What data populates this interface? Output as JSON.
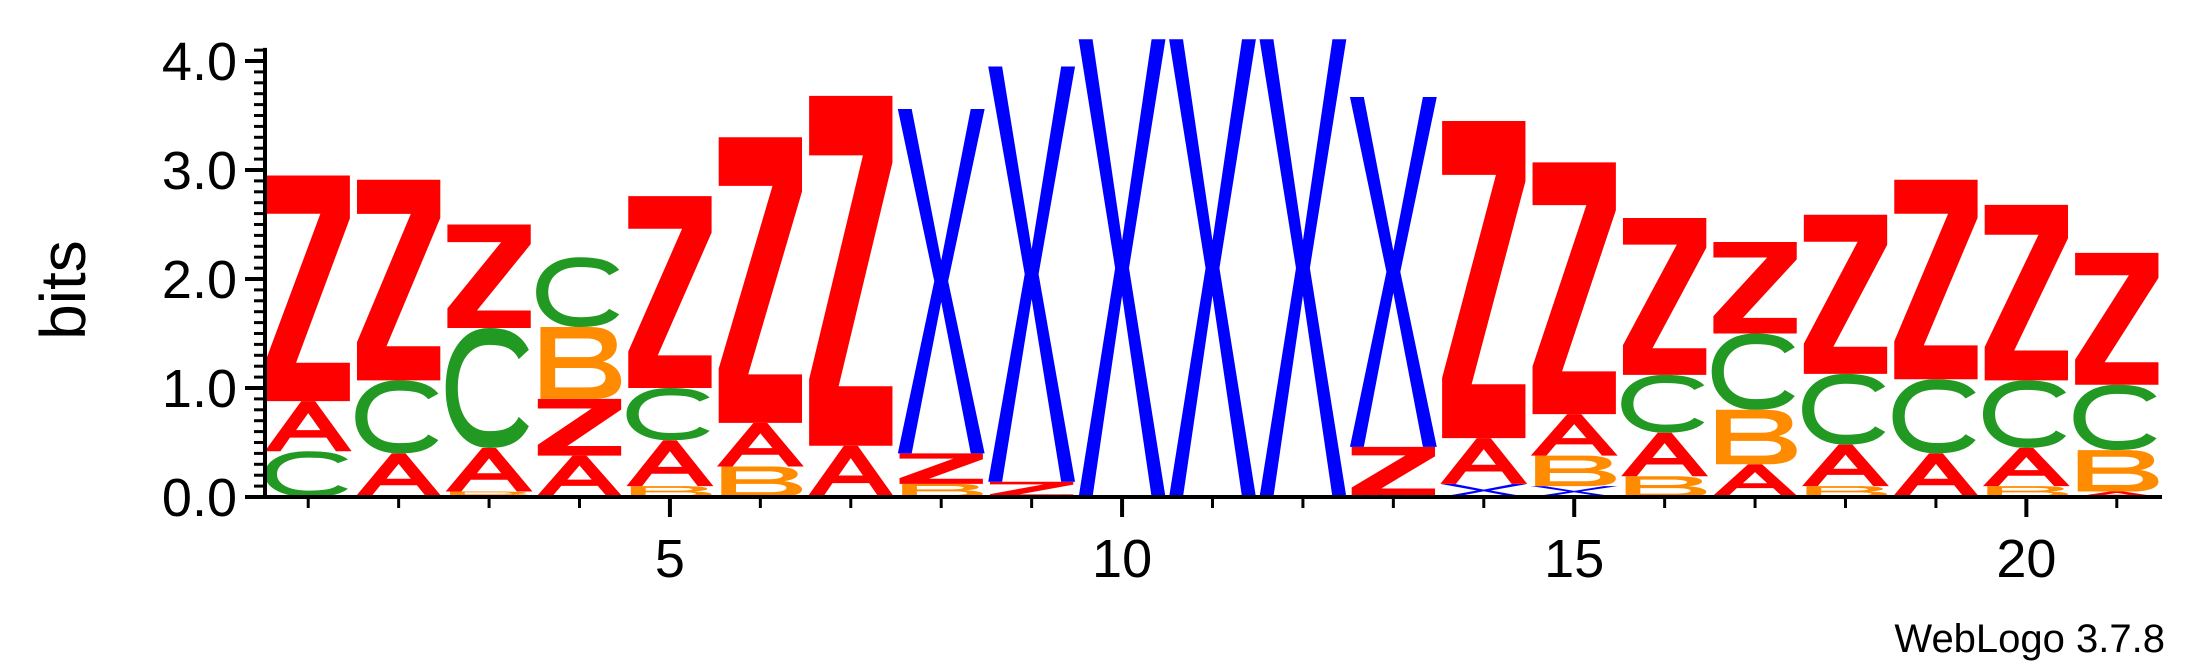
{
  "chart_data": {
    "type": "sequence-logo",
    "ylabel": "bits",
    "ylim": [
      0,
      4.2
    ],
    "yticks": [
      "0.0",
      "1.0",
      "2.0",
      "3.0",
      "4.0"
    ],
    "xtick_positions": [
      5,
      10,
      15,
      20
    ],
    "xticks": [
      "5",
      "10",
      "15",
      "20"
    ],
    "colors": {
      "Z": "#ff0000",
      "A": "#ff0000",
      "C": "#229922",
      "B": "#ff8c00",
      "X": "#0000ff"
    },
    "positions": [
      {
        "pos": 1,
        "stack": [
          [
            "C",
            0.42
          ],
          [
            "A",
            0.46
          ],
          [
            "Z",
            2.07
          ]
        ]
      },
      {
        "pos": 2,
        "stack": [
          [
            "A",
            0.4
          ],
          [
            "C",
            0.67
          ],
          [
            "Z",
            1.84
          ]
        ]
      },
      {
        "pos": 3,
        "stack": [
          [
            "B",
            0.05
          ],
          [
            "A",
            0.4
          ],
          [
            "C",
            1.1
          ],
          [
            "Z",
            0.95
          ]
        ]
      },
      {
        "pos": 4,
        "stack": [
          [
            "A",
            0.38
          ],
          [
            "Z",
            0.52
          ],
          [
            "B",
            0.66
          ],
          [
            "C",
            0.64
          ]
        ]
      },
      {
        "pos": 5,
        "stack": [
          [
            "B",
            0.1
          ],
          [
            "A",
            0.42
          ],
          [
            "C",
            0.48
          ],
          [
            "Z",
            1.76
          ]
        ]
      },
      {
        "pos": 6,
        "stack": [
          [
            "B",
            0.28
          ],
          [
            "A",
            0.4
          ],
          [
            "Z",
            2.62
          ]
        ]
      },
      {
        "pos": 7,
        "stack": [
          [
            "A",
            0.47
          ],
          [
            "Z",
            3.21
          ]
        ]
      },
      {
        "pos": 8,
        "stack": [
          [
            "B",
            0.12
          ],
          [
            "Z",
            0.28
          ],
          [
            "X",
            3.16
          ]
        ]
      },
      {
        "pos": 9,
        "stack": [
          [
            "Z",
            0.14
          ],
          [
            "X",
            3.81
          ]
        ]
      },
      {
        "pos": 10,
        "stack": [
          [
            "X",
            4.2
          ]
        ]
      },
      {
        "pos": 11,
        "stack": [
          [
            "X",
            4.2
          ]
        ]
      },
      {
        "pos": 12,
        "stack": [
          [
            "X",
            4.2
          ]
        ]
      },
      {
        "pos": 13,
        "stack": [
          [
            "Z",
            0.46
          ],
          [
            "X",
            3.21
          ]
        ]
      },
      {
        "pos": 14,
        "stack": [
          [
            "X",
            0.12
          ],
          [
            "A",
            0.42
          ],
          [
            "Z",
            2.91
          ]
        ]
      },
      {
        "pos": 15,
        "stack": [
          [
            "X",
            0.1
          ],
          [
            "B",
            0.28
          ],
          [
            "A",
            0.38
          ],
          [
            "Z",
            2.31
          ]
        ]
      },
      {
        "pos": 16,
        "stack": [
          [
            "B",
            0.19
          ],
          [
            "A",
            0.4
          ],
          [
            "C",
            0.53
          ],
          [
            "Z",
            1.44
          ]
        ]
      },
      {
        "pos": 17,
        "stack": [
          [
            "A",
            0.3
          ],
          [
            "B",
            0.5
          ],
          [
            "C",
            0.7
          ],
          [
            "Z",
            0.84
          ]
        ]
      },
      {
        "pos": 18,
        "stack": [
          [
            "B",
            0.1
          ],
          [
            "A",
            0.38
          ],
          [
            "C",
            0.65
          ],
          [
            "Z",
            1.46
          ]
        ]
      },
      {
        "pos": 19,
        "stack": [
          [
            "A",
            0.4
          ],
          [
            "C",
            0.68
          ],
          [
            "Z",
            1.83
          ]
        ]
      },
      {
        "pos": 20,
        "stack": [
          [
            "B",
            0.1
          ],
          [
            "A",
            0.35
          ],
          [
            "C",
            0.62
          ],
          [
            "Z",
            1.61
          ]
        ]
      },
      {
        "pos": 21,
        "stack": [
          [
            "A",
            0.05
          ],
          [
            "B",
            0.38
          ],
          [
            "C",
            0.6
          ],
          [
            "Z",
            1.21
          ]
        ]
      }
    ]
  },
  "footer": {
    "credit": "WebLogo 3.7.8"
  }
}
